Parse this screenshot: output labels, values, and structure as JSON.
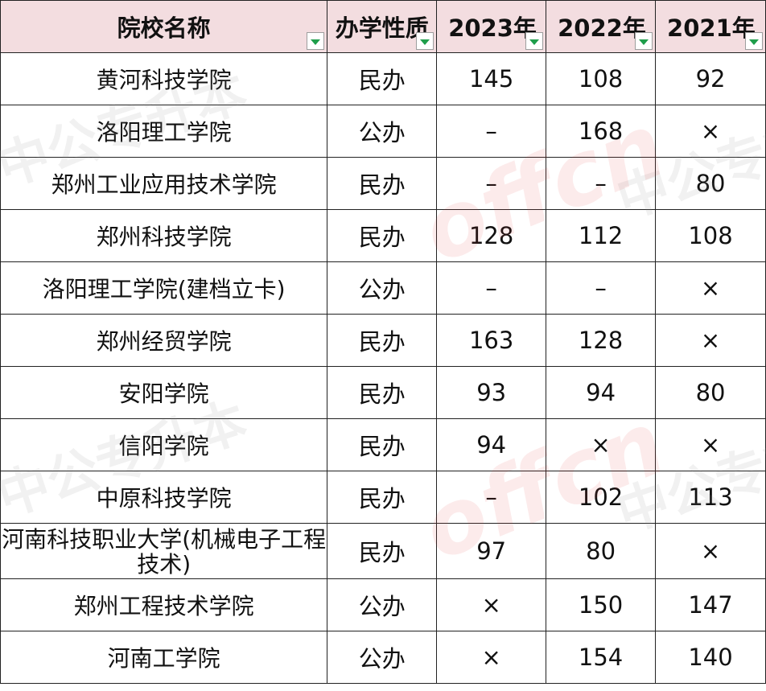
{
  "table": {
    "headers": {
      "school": "院校名称",
      "type": "办学性质",
      "y2023": "2023年",
      "y2022": "2022年",
      "y2021": "2021年"
    },
    "rows": [
      {
        "school": "黄河科技学院",
        "type": "民办",
        "y2023": "145",
        "y2022": "108",
        "y2021": "92"
      },
      {
        "school": "洛阳理工学院",
        "type": "公办",
        "y2023": "–",
        "y2022": "168",
        "y2021": "×"
      },
      {
        "school": "郑州工业应用技术学院",
        "type": "民办",
        "y2023": "–",
        "y2022": "–",
        "y2021": "80"
      },
      {
        "school": "郑州科技学院",
        "type": "民办",
        "y2023": "128",
        "y2022": "112",
        "y2021": "108"
      },
      {
        "school": "洛阳理工学院(建档立卡)",
        "type": "公办",
        "y2023": "–",
        "y2022": "–",
        "y2021": "×"
      },
      {
        "school": "郑州经贸学院",
        "type": "民办",
        "y2023": "163",
        "y2022": "128",
        "y2021": "×"
      },
      {
        "school": "安阳学院",
        "type": "民办",
        "y2023": "93",
        "y2022": "94",
        "y2021": "80"
      },
      {
        "school": "信阳学院",
        "type": "民办",
        "y2023": "94",
        "y2022": "×",
        "y2021": "×"
      },
      {
        "school": "中原科技学院",
        "type": "民办",
        "y2023": "–",
        "y2022": "102",
        "y2021": "113"
      },
      {
        "school": "河南科技职业大学(机械电子工程技术)",
        "type": "民办",
        "y2023": "97",
        "y2022": "80",
        "y2021": "×"
      },
      {
        "school": "郑州工程技术学院",
        "type": "公办",
        "y2023": "×",
        "y2022": "150",
        "y2021": "147"
      },
      {
        "school": "河南工学院",
        "type": "公办",
        "y2023": "×",
        "y2022": "154",
        "y2021": "140"
      }
    ]
  },
  "watermark": {
    "text_cn": "中公专升本",
    "text_logo": "offcn"
  },
  "colors": {
    "header_bg": "#f3dde0",
    "filter_arrow": "#1f9e4b",
    "border": "#222222"
  }
}
